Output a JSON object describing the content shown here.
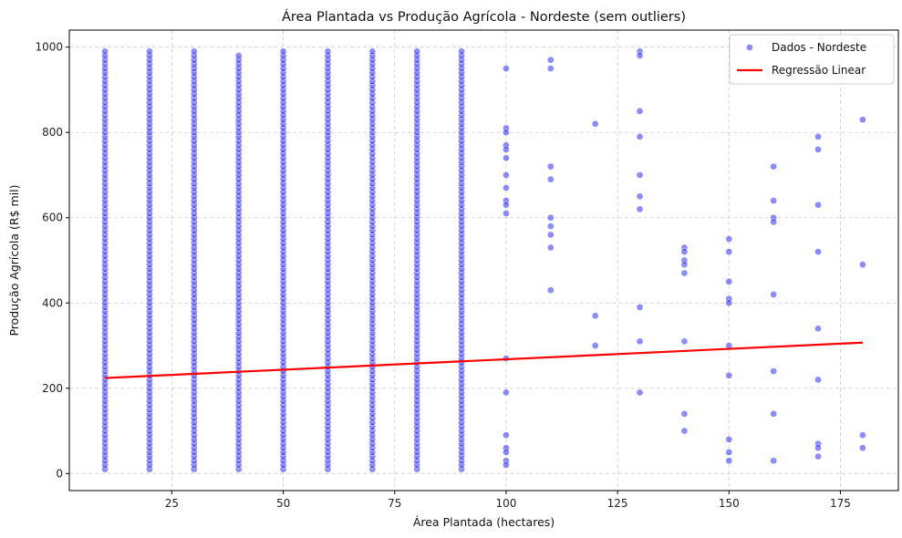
{
  "chart_data": {
    "type": "scatter",
    "title": "Área Plantada vs Produção Agrícola - Nordeste (sem outliers)",
    "xlabel": "Área Plantada (hectares)",
    "ylabel": "Produção Agrícola (R$ mil)",
    "xlim": [
      2,
      188
    ],
    "ylim": [
      -40,
      1040
    ],
    "xticks": [
      25,
      50,
      75,
      100,
      125,
      150,
      175
    ],
    "yticks": [
      0,
      200,
      400,
      600,
      800,
      1000
    ],
    "grid": true,
    "legend_position": "top-right",
    "colors": {
      "scatter": "#0000ff",
      "regression": "#ff0000"
    },
    "series": [
      {
        "name": "Dados - Nordeste",
        "kind": "scatter",
        "dense_columns": [
          {
            "x": 10,
            "y_min": 10,
            "y_max": 990,
            "step": 10
          },
          {
            "x": 20,
            "y_min": 10,
            "y_max": 990,
            "step": 10
          },
          {
            "x": 30,
            "y_min": 10,
            "y_max": 990,
            "step": 10
          },
          {
            "x": 40,
            "y_min": 10,
            "y_max": 980,
            "step": 10
          },
          {
            "x": 50,
            "y_min": 10,
            "y_max": 990,
            "step": 10
          },
          {
            "x": 60,
            "y_min": 10,
            "y_max": 990,
            "step": 10
          },
          {
            "x": 70,
            "y_min": 10,
            "y_max": 990,
            "step": 10
          },
          {
            "x": 80,
            "y_min": 10,
            "y_max": 990,
            "step": 10
          },
          {
            "x": 90,
            "y_min": 10,
            "y_max": 990,
            "step": 10
          }
        ],
        "points": [
          [
            100,
            950
          ],
          [
            100,
            810
          ],
          [
            100,
            800
          ],
          [
            100,
            770
          ],
          [
            100,
            760
          ],
          [
            100,
            740
          ],
          [
            100,
            700
          ],
          [
            100,
            670
          ],
          [
            100,
            640
          ],
          [
            100,
            630
          ],
          [
            100,
            610
          ],
          [
            100,
            270
          ],
          [
            100,
            190
          ],
          [
            100,
            90
          ],
          [
            100,
            60
          ],
          [
            100,
            50
          ],
          [
            100,
            30
          ],
          [
            100,
            20
          ],
          [
            110,
            970
          ],
          [
            110,
            950
          ],
          [
            110,
            720
          ],
          [
            110,
            690
          ],
          [
            110,
            600
          ],
          [
            110,
            580
          ],
          [
            110,
            560
          ],
          [
            110,
            530
          ],
          [
            110,
            430
          ],
          [
            120,
            820
          ],
          [
            120,
            370
          ],
          [
            120,
            300
          ],
          [
            130,
            990
          ],
          [
            130,
            980
          ],
          [
            130,
            850
          ],
          [
            130,
            790
          ],
          [
            130,
            700
          ],
          [
            130,
            650
          ],
          [
            130,
            620
          ],
          [
            130,
            390
          ],
          [
            130,
            310
          ],
          [
            130,
            190
          ],
          [
            140,
            530
          ],
          [
            140,
            520
          ],
          [
            140,
            500
          ],
          [
            140,
            490
          ],
          [
            140,
            470
          ],
          [
            140,
            310
          ],
          [
            140,
            140
          ],
          [
            140,
            100
          ],
          [
            150,
            550
          ],
          [
            150,
            520
          ],
          [
            150,
            450
          ],
          [
            150,
            410
          ],
          [
            150,
            400
          ],
          [
            150,
            300
          ],
          [
            150,
            230
          ],
          [
            150,
            80
          ],
          [
            150,
            50
          ],
          [
            150,
            30
          ],
          [
            160,
            720
          ],
          [
            160,
            640
          ],
          [
            160,
            600
          ],
          [
            160,
            590
          ],
          [
            160,
            420
          ],
          [
            160,
            240
          ],
          [
            160,
            140
          ],
          [
            160,
            30
          ],
          [
            170,
            790
          ],
          [
            170,
            760
          ],
          [
            170,
            630
          ],
          [
            170,
            520
          ],
          [
            170,
            340
          ],
          [
            170,
            220
          ],
          [
            170,
            70
          ],
          [
            170,
            60
          ],
          [
            170,
            40
          ],
          [
            180,
            830
          ],
          [
            180,
            490
          ],
          [
            180,
            90
          ],
          [
            180,
            60
          ]
        ]
      },
      {
        "name": "Regressão Linear",
        "kind": "line",
        "x": [
          10,
          180
        ],
        "y": [
          224,
          307
        ]
      }
    ]
  }
}
